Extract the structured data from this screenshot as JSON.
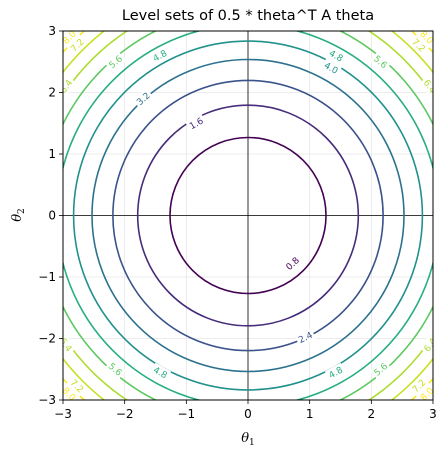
{
  "chart_data": {
    "type": "contour",
    "title": "Level sets of 0.5 * theta^T A theta",
    "function": "0.5 * (theta1^2 + theta2^2)",
    "xlabel": "θ",
    "xlabel_sub": "1",
    "ylabel": "θ",
    "ylabel_sub": "2",
    "xlim": [
      -3,
      3
    ],
    "ylim": [
      -3,
      3
    ],
    "xticks": [
      -3,
      -2,
      -1,
      0,
      1,
      2,
      3
    ],
    "yticks": [
      -3,
      -2,
      -1,
      0,
      1,
      2,
      3
    ],
    "grid": true,
    "zero_lines": true,
    "colormap": "viridis",
    "levels": [
      {
        "value": 0.8,
        "label": "0.8",
        "color": "#440154"
      },
      {
        "value": 1.6,
        "label": "1.6",
        "color": "#472d7b"
      },
      {
        "value": 2.4,
        "label": "2.4",
        "color": "#3b528b"
      },
      {
        "value": 3.2,
        "label": "3.2",
        "color": "#2c728e"
      },
      {
        "value": 4.0,
        "label": "4.0",
        "color": "#21918c"
      },
      {
        "value": 4.8,
        "label": "4.8",
        "color": "#28ae80"
      },
      {
        "value": 5.6,
        "label": "5.6",
        "color": "#5ec962"
      },
      {
        "value": 6.4,
        "label": "6.4",
        "color": "#addc30"
      },
      {
        "value": 7.2,
        "label": "7.2",
        "color": "#c8e020"
      },
      {
        "value": 8.0,
        "label": "8.0",
        "color": "#fde725"
      }
    ],
    "contour_labels": [
      {
        "level": 0.8,
        "x": 0.72,
        "y": -0.78
      },
      {
        "level": 1.6,
        "x": -0.84,
        "y": 1.5
      },
      {
        "level": 2.4,
        "x": 0.93,
        "y": -1.98
      },
      {
        "level": 3.2,
        "x": -1.7,
        "y": 1.9
      },
      {
        "level": 4.0,
        "x": 1.35,
        "y": 2.4
      },
      {
        "level": 4.8,
        "x": 1.43,
        "y": 2.6
      },
      {
        "level": 4.8,
        "x": -1.43,
        "y": 2.6
      },
      {
        "level": 4.8,
        "x": 1.42,
        "y": -2.55
      },
      {
        "level": 4.8,
        "x": -1.42,
        "y": -2.55
      },
      {
        "level": 5.6,
        "x": 2.15,
        "y": 2.5
      },
      {
        "level": 5.6,
        "x": -2.15,
        "y": 2.5
      },
      {
        "level": 5.6,
        "x": 2.15,
        "y": -2.5
      },
      {
        "level": 5.6,
        "x": -2.15,
        "y": -2.5
      },
      {
        "level": 6.4,
        "x": 2.95,
        "y": 2.1
      },
      {
        "level": 6.4,
        "x": -2.95,
        "y": 2.1
      },
      {
        "level": 6.4,
        "x": 2.95,
        "y": -2.1
      },
      {
        "level": 6.4,
        "x": -2.95,
        "y": -2.1
      },
      {
        "level": 7.2,
        "x": 2.77,
        "y": 2.77
      },
      {
        "level": 7.2,
        "x": -2.77,
        "y": 2.77
      },
      {
        "level": 7.2,
        "x": 2.77,
        "y": -2.77
      },
      {
        "level": 7.2,
        "x": -2.77,
        "y": -2.77
      },
      {
        "level": 8.0,
        "x": 2.9,
        "y": 2.9
      },
      {
        "level": 8.0,
        "x": -2.9,
        "y": 2.9
      },
      {
        "level": 8.0,
        "x": 2.9,
        "y": -2.9
      },
      {
        "level": 8.0,
        "x": -2.9,
        "y": -2.9
      }
    ]
  }
}
